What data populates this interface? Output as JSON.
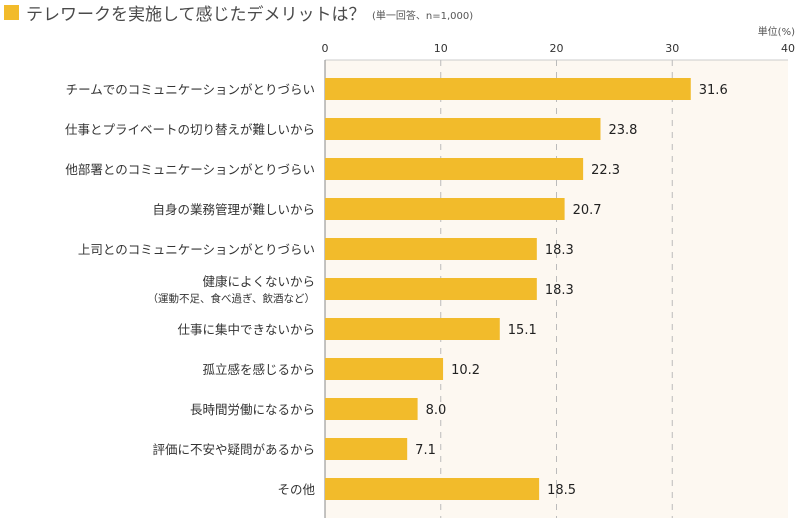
{
  "chart_data": {
    "type": "bar",
    "orientation": "horizontal",
    "title": "テレワークを実施して感じたデメリットは？",
    "subtitle": "(単一回答、n=1,000)",
    "unit_label": "単位(%)",
    "xlim": [
      0,
      40
    ],
    "ticks": [
      "0",
      "10",
      "20",
      "30",
      "40"
    ],
    "tick_values": [
      0,
      10,
      20,
      30,
      40
    ],
    "grid": "dashed vertical",
    "categories": [
      {
        "label": "チームでのコミュニケーションがとりづらい",
        "note": ""
      },
      {
        "label": "仕事とプライベートの切り替えが難しいから",
        "note": ""
      },
      {
        "label": "他部署とのコミュニケーションがとりづらい",
        "note": ""
      },
      {
        "label": "自身の業務管理が難しいから",
        "note": ""
      },
      {
        "label": "上司とのコミュニケーションがとりづらい",
        "note": ""
      },
      {
        "label": "健康によくないから",
        "note": "（運動不足、食べ過ぎ、飲酒など）"
      },
      {
        "label": "仕事に集中できないから",
        "note": ""
      },
      {
        "label": "孤立感を感じるから",
        "note": ""
      },
      {
        "label": "長時間労働になるから",
        "note": ""
      },
      {
        "label": "評価に不安や疑問があるから",
        "note": ""
      },
      {
        "label": "その他",
        "note": ""
      }
    ],
    "values": [
      31.6,
      23.8,
      22.3,
      20.7,
      18.3,
      18.3,
      15.1,
      10.2,
      8.0,
      7.1,
      18.5
    ],
    "value_labels": [
      "31.6",
      "23.8",
      "22.3",
      "20.7",
      "18.3",
      "18.3",
      "15.1",
      "10.2",
      "8.0",
      "7.1",
      "18.5"
    ],
    "colors": {
      "bar": "#f2bb2b",
      "plot_bg": "#fdf8f1",
      "title_square": "#f2bb2b",
      "grid": "#bbbbbb"
    }
  }
}
